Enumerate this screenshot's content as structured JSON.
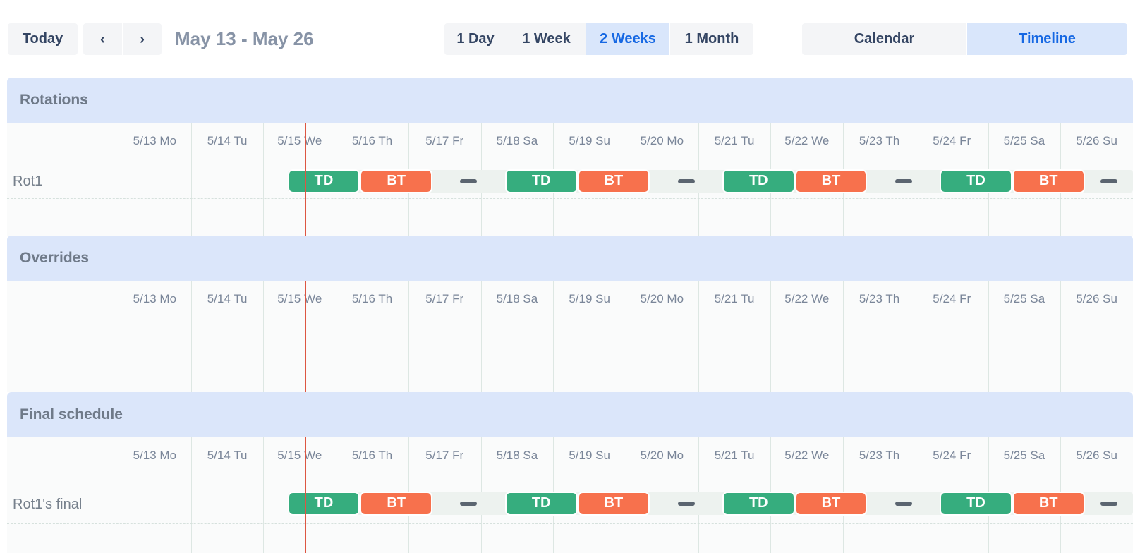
{
  "toolbar": {
    "today_label": "Today",
    "nav": {
      "prev_icon": "‹",
      "next_icon": "›"
    },
    "date_range": "May 13 - May 26",
    "range_options": [
      {
        "label": "1 Day",
        "selected": false
      },
      {
        "label": "1 Week",
        "selected": false
      },
      {
        "label": "2 Weeks",
        "selected": true
      },
      {
        "label": "1 Month",
        "selected": false
      }
    ],
    "view_options": [
      {
        "label": "Calendar",
        "selected": false
      },
      {
        "label": "Timeline",
        "selected": true
      }
    ]
  },
  "colors": {
    "accent_blue": "#1668e3",
    "selected_bg": "#d9e6fb",
    "button_bg": "#f4f5f7",
    "button_text": "#344563",
    "section_band_bg": "#dbe6fa",
    "shift_td": "#36ad7e",
    "shift_bt": "#f7714d",
    "lane_bg": "#edf2ef",
    "gap_dash": "#5b6570",
    "now_line": "#dd5642"
  },
  "timeline": {
    "columns": [
      "5/13 Mo",
      "5/14 Tu",
      "5/15 We",
      "5/16 Th",
      "5/17 Fr",
      "5/18 Sa",
      "5/19 Su",
      "5/20 Mo",
      "5/21 Tu",
      "5/22 We",
      "5/23 Th",
      "5/24 Fr",
      "5/25 Sa",
      "5/26 Su"
    ],
    "now": {
      "day_index": 2,
      "hour": 13.7
    },
    "sections": [
      {
        "title": "Rotations",
        "rows": [
          {
            "label": "Rot1",
            "shifts": [
              {
                "type": "TD",
                "day": 2,
                "hour": 8,
                "duration_h": 24
              },
              {
                "type": "BT",
                "day": 3,
                "hour": 8,
                "duration_h": 24
              },
              {
                "type": "none",
                "day": 4,
                "hour": 8,
                "duration_h": 24,
                "dash_hour": 20
              },
              {
                "type": "TD",
                "day": 5,
                "hour": 8,
                "duration_h": 24
              },
              {
                "type": "BT",
                "day": 6,
                "hour": 8,
                "duration_h": 24
              },
              {
                "type": "none",
                "day": 7,
                "hour": 8,
                "duration_h": 24,
                "dash_hour": 20
              },
              {
                "type": "TD",
                "day": 8,
                "hour": 8,
                "duration_h": 24
              },
              {
                "type": "BT",
                "day": 9,
                "hour": 8,
                "duration_h": 24
              },
              {
                "type": "none",
                "day": 10,
                "hour": 8,
                "duration_h": 24,
                "dash_hour": 20
              },
              {
                "type": "TD",
                "day": 11,
                "hour": 8,
                "duration_h": 24
              },
              {
                "type": "BT",
                "day": 12,
                "hour": 8,
                "duration_h": 24
              },
              {
                "type": "none",
                "day": 13,
                "hour": 8,
                "duration_h": 16,
                "dash_hour": 16
              }
            ]
          }
        ]
      },
      {
        "title": "Overrides",
        "rows": []
      },
      {
        "title": "Final schedule",
        "rows": [
          {
            "label": "Rot1's final",
            "shifts": [
              {
                "type": "TD",
                "day": 2,
                "hour": 8,
                "duration_h": 24
              },
              {
                "type": "BT",
                "day": 3,
                "hour": 8,
                "duration_h": 24
              },
              {
                "type": "none",
                "day": 4,
                "hour": 8,
                "duration_h": 24,
                "dash_hour": 20
              },
              {
                "type": "TD",
                "day": 5,
                "hour": 8,
                "duration_h": 24
              },
              {
                "type": "BT",
                "day": 6,
                "hour": 8,
                "duration_h": 24
              },
              {
                "type": "none",
                "day": 7,
                "hour": 8,
                "duration_h": 24,
                "dash_hour": 20
              },
              {
                "type": "TD",
                "day": 8,
                "hour": 8,
                "duration_h": 24
              },
              {
                "type": "BT",
                "day": 9,
                "hour": 8,
                "duration_h": 24
              },
              {
                "type": "none",
                "day": 10,
                "hour": 8,
                "duration_h": 24,
                "dash_hour": 20
              },
              {
                "type": "TD",
                "day": 11,
                "hour": 8,
                "duration_h": 24
              },
              {
                "type": "BT",
                "day": 12,
                "hour": 8,
                "duration_h": 24
              },
              {
                "type": "none",
                "day": 13,
                "hour": 8,
                "duration_h": 16,
                "dash_hour": 16
              }
            ]
          }
        ]
      }
    ]
  }
}
